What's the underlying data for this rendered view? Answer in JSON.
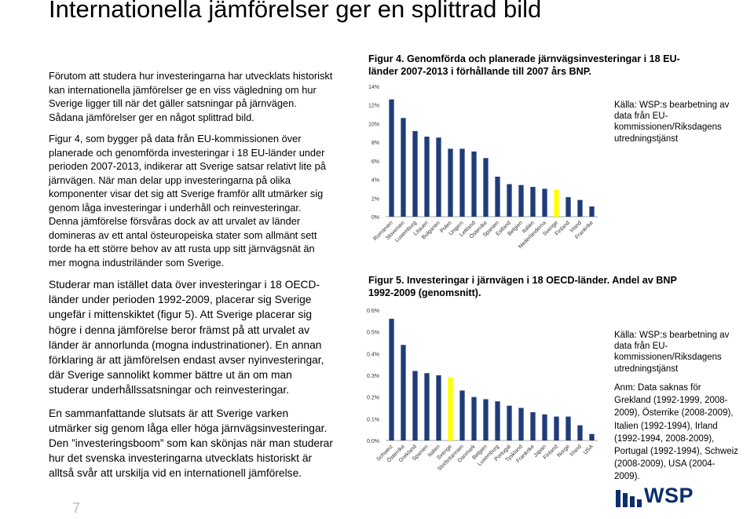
{
  "title": "Internationella jämförelser ger en splittrad bild",
  "left_paragraphs": [
    "Förutom att studera hur investeringarna har utvecklats historiskt kan internationella jämförelser ge en viss vägledning om hur Sverige ligger till när det gäller satsningar på järnvägen. Sådana jämförelser ger en något splittrad bild.",
    "Figur 4, som bygger på data från EU-kommissionen över planerade och genomförda investeringar i 18 EU-länder under perioden 2007-2013, indikerar att Sverige satsar relativt lite på järnvägen. När man delar upp investeringarna på olika komponenter visar det sig att Sverige framför allt utmärker sig genom låga investeringar i underhåll och reinvesteringar. Denna jämförelse försvåras dock av att urvalet av länder domineras av ett antal östeuropeiska stater som allmänt sett torde ha ett större behov av att rusta upp sitt järnvägsnät än mer mogna industriländer som Sverige.",
    "Studerar man istället data över investeringar i 18 OECD-länder under perioden 1992-2009, placerar sig Sverige ungefär i mittenskiktet (figur 5). Att Sverige placerar sig högre i denna jämförelse beror främst på att urvalet av länder är annorlunda (mogna industrinationer). En annan förklaring är att jämförelsen endast avser nyinvesteringar, där Sverige sannolikt kommer bättre ut än om man studerar underhållssatsningar och reinvesteringar.",
    "En sammanfattande slutsats är att Sverige varken utmärker sig genom låga eller höga järnvägsinvesteringar. Den ”investeringsboom” som kan skönjas när man studerar hur det svenska investeringarna utvecklats historiskt är alltså svår att urskilja vid en internationell jämförelse."
  ],
  "fig4": {
    "caption": "Figur 4. Genomförda och planerade järnvägsinvesteringar i 18 EU-länder 2007-2013 i förhållande till 2007 års BNP.",
    "source": "Källa: WSP:s bearbetning av data från EU-kommissionen/Riksdagens utredningstjänst"
  },
  "fig5": {
    "caption": "Figur 5. Investeringar i järnvägen i 18 OECD-länder. Andel av BNP 1992-2009 (genomsnitt).",
    "source": "Källa: WSP:s bearbetning av data från EU-kommissionen/Riksdagens utredningstjänst",
    "note": "Anm: Data saknas för Grekland (1992-1999, 2008-2009), Österrike (2008-2009), Italien (1992-1994), Irland (1992-1994, 2008-2009), Portugal (1992-1994), Schweiz (2008-2009), USA (2004-2009)."
  },
  "page_number": "7",
  "logo_text": "WSP",
  "colors": {
    "bar": "#1f3c7a",
    "highlight": "#ffff00",
    "axis": "#888888",
    "logo": "#0a2e6e"
  },
  "chart_data": [
    {
      "type": "bar",
      "categories": [
        "Rumänien",
        "Slovenien",
        "Luxemburg",
        "Litauen",
        "Bulgarien",
        "Polen",
        "Ungern",
        "Lettland",
        "Österrike",
        "Spanien",
        "Estland",
        "Belgien",
        "Italien",
        "Nederländerna",
        "Sverige",
        "Finland",
        "Irland",
        "Frankrike"
      ],
      "values": [
        12.6,
        10.6,
        9.2,
        8.6,
        8.5,
        7.3,
        7.3,
        7.0,
        6.3,
        4.3,
        3.5,
        3.4,
        3.2,
        3.0,
        2.9,
        2.1,
        1.8,
        1.1
      ],
      "highlight": "Sverige",
      "yticks": [
        "0%",
        "2%",
        "4%",
        "6%",
        "8%",
        "10%",
        "12%",
        "14%"
      ],
      "ylim": [
        0,
        14
      ]
    },
    {
      "type": "bar",
      "categories": [
        "Schweiz",
        "Österrike",
        "Grekland",
        "Spanien",
        "Italien",
        "Sverige",
        "Storbritannien",
        "Danmark",
        "Belgien",
        "Luxemburg",
        "Portugal",
        "Tyskland",
        "Frankrike",
        "Japan",
        "Finland",
        "Norge",
        "Irland",
        "USA"
      ],
      "values": [
        0.56,
        0.44,
        0.32,
        0.31,
        0.3,
        0.29,
        0.23,
        0.2,
        0.19,
        0.18,
        0.16,
        0.15,
        0.13,
        0.12,
        0.11,
        0.11,
        0.07,
        0.03
      ],
      "highlight": "Sverige",
      "yticks": [
        "0.0%",
        "0.1%",
        "0.2%",
        "0.3%",
        "0.4%",
        "0.5%",
        "0.6%"
      ],
      "ylim": [
        0,
        0.6
      ]
    }
  ]
}
